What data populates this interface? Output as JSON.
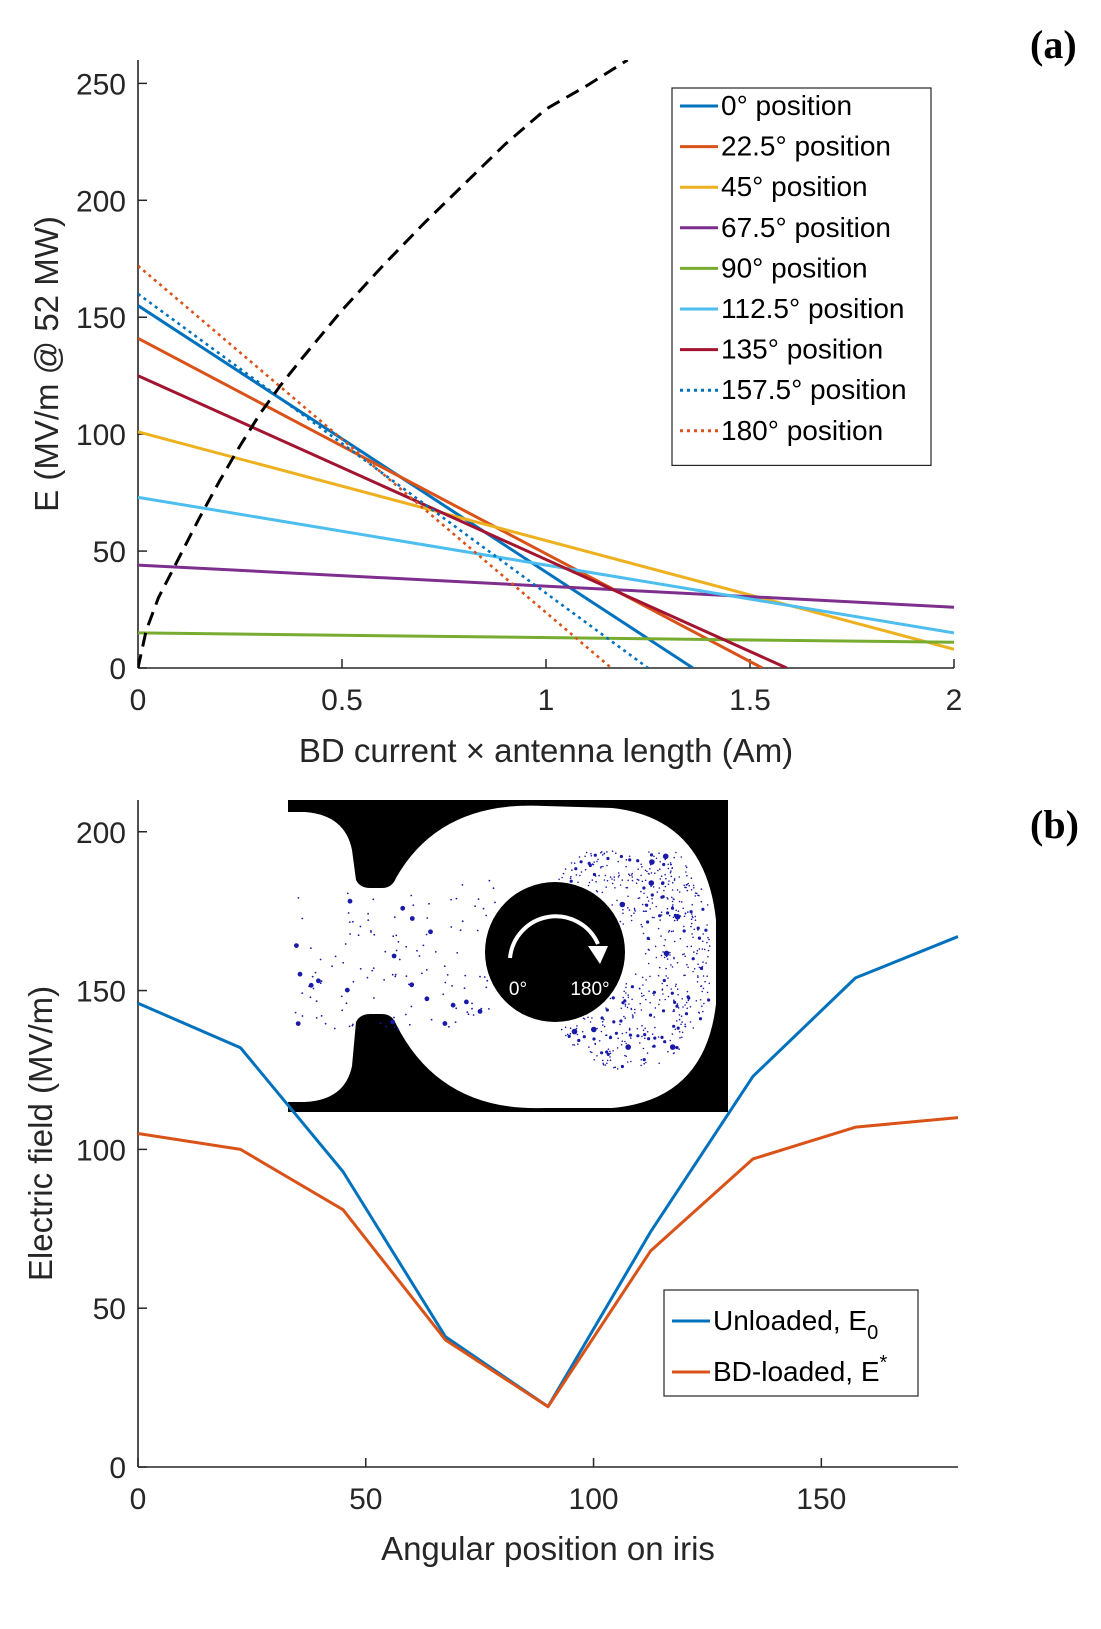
{
  "chart_data": [
    {
      "panel": "(a)",
      "type": "line",
      "title": "",
      "xlabel": "BD current × antenna length (Am)",
      "ylabel": "E (MV/m @ 52 MW)",
      "xlim": [
        0,
        2
      ],
      "ylim": [
        0,
        260
      ],
      "xticks": [
        "0",
        "0.5",
        "1",
        "1.5",
        "2"
      ],
      "xtick_values": [
        0,
        0.5,
        1,
        1.5,
        2
      ],
      "yticks": [
        "0",
        "50",
        "100",
        "150",
        "200",
        "250"
      ],
      "ytick_values": [
        0,
        50,
        100,
        150,
        200,
        250
      ],
      "legend_position": "top-right",
      "series": [
        {
          "name": "0° position",
          "color": "#0072BD",
          "style": "solid",
          "x": [
            0,
            1.36
          ],
          "y": [
            155,
            0
          ]
        },
        {
          "name": "22.5° position",
          "color": "#D95319",
          "style": "solid",
          "x": [
            0,
            1.53
          ],
          "y": [
            141,
            0
          ]
        },
        {
          "name": "45° position",
          "color": "#EDB120",
          "style": "solid",
          "x": [
            0,
            2.0
          ],
          "y": [
            101,
            8
          ]
        },
        {
          "name": "67.5° position",
          "color": "#7E2F8E",
          "style": "solid",
          "x": [
            0,
            2.0
          ],
          "y": [
            44,
            26
          ]
        },
        {
          "name": "90° position",
          "color": "#77AC30",
          "style": "solid",
          "x": [
            0,
            2.0
          ],
          "y": [
            15,
            11
          ]
        },
        {
          "name": "112.5° position",
          "color": "#4DBEEE",
          "style": "solid",
          "x": [
            0,
            2.0
          ],
          "y": [
            73,
            15
          ]
        },
        {
          "name": "135° position",
          "color": "#A2142F",
          "style": "solid",
          "x": [
            0,
            1.59
          ],
          "y": [
            125,
            0
          ]
        },
        {
          "name": "157.5° position",
          "color": "#0072BD",
          "style": "dotted",
          "x": [
            0,
            1.25
          ],
          "y": [
            160,
            0
          ]
        },
        {
          "name": "180° position",
          "color": "#D95319",
          "style": "dotted",
          "x": [
            0,
            1.16
          ],
          "y": [
            172,
            0
          ]
        }
      ],
      "reference_curve": {
        "color": "#000000",
        "style": "dashed",
        "x": [
          0,
          0.02,
          0.05,
          0.1,
          0.15,
          0.2,
          0.25,
          0.3,
          0.35,
          0.4,
          0.5,
          0.6,
          0.7,
          0.8,
          0.9,
          1.0,
          1.1,
          1.2
        ],
        "y": [
          0,
          16,
          30,
          47,
          64,
          80,
          95,
          109,
          121,
          132,
          153,
          172,
          190,
          207,
          224,
          239,
          249,
          260
        ]
      }
    },
    {
      "panel": "(b)",
      "type": "line",
      "title": "",
      "xlabel": "Angular position on iris",
      "ylabel": "Electric field (MV/m)",
      "xlim": [
        0,
        180
      ],
      "ylim": [
        0,
        210
      ],
      "xticks": [
        "0",
        "50",
        "100",
        "150"
      ],
      "xtick_values": [
        0,
        50,
        100,
        150
      ],
      "yticks": [
        "0",
        "50",
        "100",
        "150",
        "200"
      ],
      "ytick_values": [
        0,
        50,
        100,
        150,
        200
      ],
      "legend_position": "bottom-right",
      "x": [
        0,
        22.5,
        45,
        67.5,
        90,
        112.5,
        135,
        157.5,
        180
      ],
      "series": [
        {
          "name": "Unloaded, E",
          "sub": "0",
          "sup": "",
          "color": "#0072BD",
          "values": [
            146,
            132,
            93,
            41,
            19,
            74,
            123,
            154,
            167
          ]
        },
        {
          "name": "BD-loaded, E",
          "sub": "",
          "sup": "*",
          "color": "#D95319",
          "values": [
            105,
            100,
            81,
            40,
            19,
            68,
            97,
            107,
            110
          ]
        }
      ],
      "inset": {
        "labels": [
          "0°",
          "180°"
        ]
      }
    }
  ]
}
